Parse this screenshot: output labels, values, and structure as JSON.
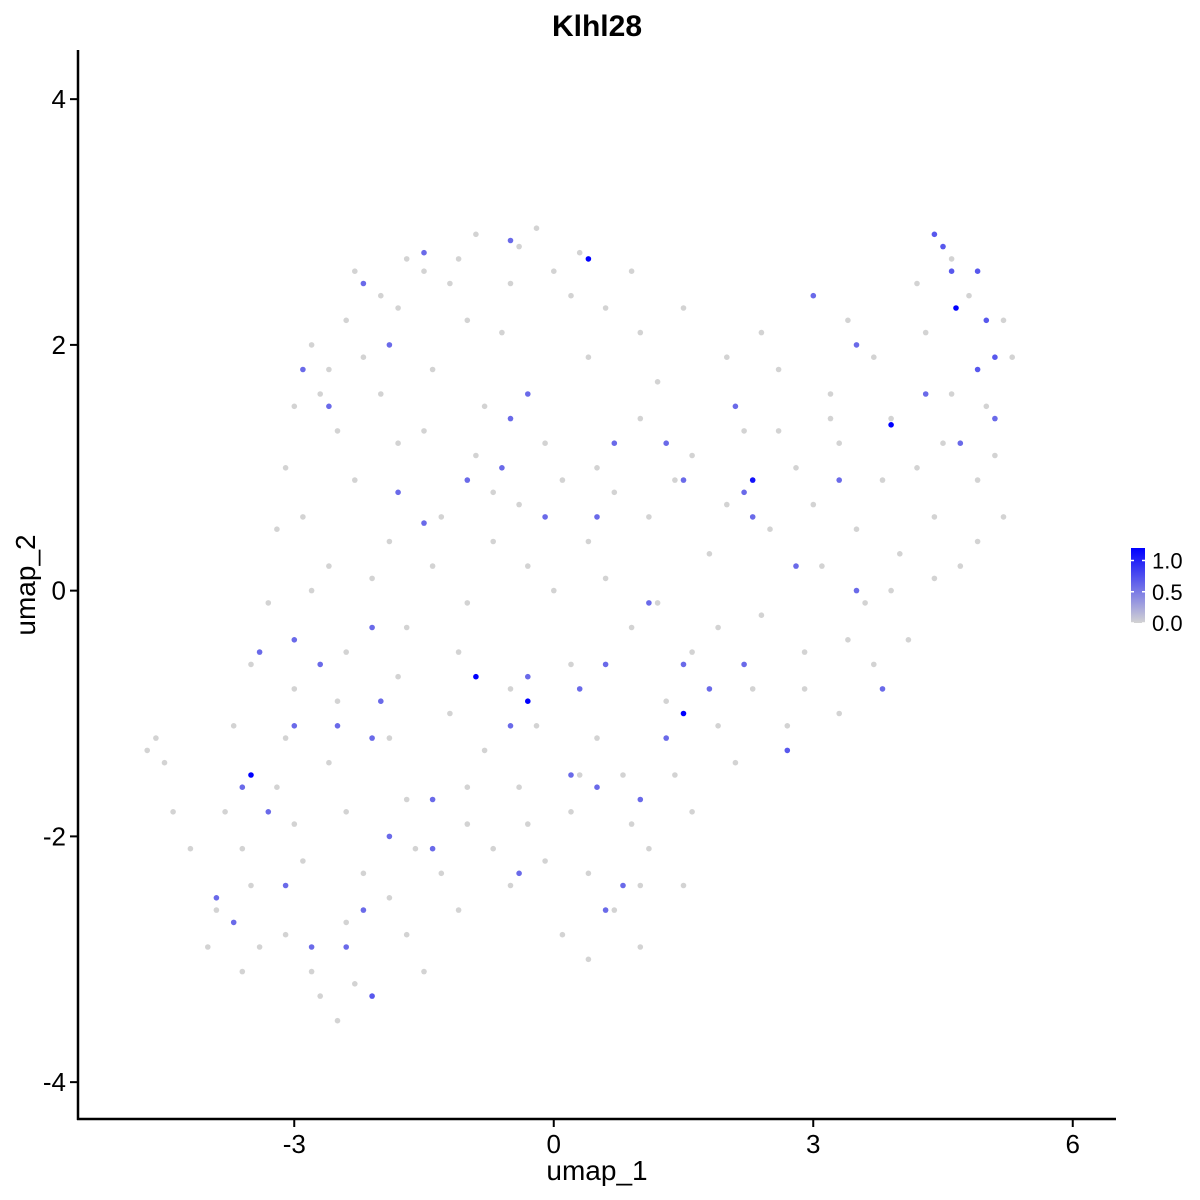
{
  "chart_data": {
    "type": "scatter",
    "title": "Klhl28",
    "xlabel": "umap_1",
    "ylabel": "umap_2",
    "xlim": [
      -5.5,
      6.5
    ],
    "ylim": [
      -4.3,
      4.4
    ],
    "xticks": [
      -3,
      0,
      3,
      6
    ],
    "yticks": [
      -4,
      -2,
      0,
      2,
      4
    ],
    "grid": false,
    "legend": {
      "position": "right",
      "type": "colorbar",
      "labels": [
        "1.0",
        "0.5",
        "0.0"
      ],
      "values": [
        1.0,
        0.5,
        0.0
      ],
      "range": [
        0,
        1.2
      ],
      "low_color": "#d3d3d3",
      "high_color": "#0000ff"
    },
    "point_color_zero": "#d3d3d3",
    "point_color_high": "#0000ff",
    "points": [
      [
        -0.4,
        2.8,
        0
      ],
      [
        -0.9,
        2.9,
        0
      ],
      [
        0.3,
        2.75,
        0
      ],
      [
        -1.5,
        2.6,
        0
      ],
      [
        -2.0,
        2.4,
        0
      ],
      [
        -2.4,
        2.2,
        0
      ],
      [
        -1.2,
        2.5,
        0
      ],
      [
        0.9,
        2.6,
        0
      ],
      [
        -0.2,
        2.95,
        0
      ],
      [
        -1.7,
        2.7,
        0
      ],
      [
        -2.8,
        2.0,
        0
      ],
      [
        -2.6,
        1.8,
        0
      ],
      [
        -3.0,
        1.5,
        0
      ],
      [
        -2.2,
        1.9,
        0
      ],
      [
        -1.0,
        2.2,
        0
      ],
      [
        0.2,
        2.4,
        0
      ],
      [
        0.6,
        2.3,
        0
      ],
      [
        -0.6,
        2.1,
        0
      ],
      [
        -1.4,
        1.8,
        0
      ],
      [
        -2.5,
        1.3,
        0
      ],
      [
        -3.1,
        1.0,
        0
      ],
      [
        -2.9,
        0.6,
        0
      ],
      [
        -2.3,
        0.9,
        0
      ],
      [
        -1.8,
        1.2,
        0
      ],
      [
        -0.8,
        1.5,
        0
      ],
      [
        0.4,
        1.9,
        0
      ],
      [
        1.2,
        1.7,
        0
      ],
      [
        2.0,
        1.9,
        0
      ],
      [
        2.6,
        1.8,
        0
      ],
      [
        3.2,
        1.6,
        0
      ],
      [
        3.7,
        1.9,
        0
      ],
      [
        4.3,
        2.1,
        0
      ],
      [
        4.8,
        2.4,
        0
      ],
      [
        5.2,
        2.2,
        0
      ],
      [
        4.6,
        2.7,
        0
      ],
      [
        4.2,
        2.5,
        0
      ],
      [
        3.9,
        1.4,
        0
      ],
      [
        4.5,
        1.2,
        0
      ],
      [
        5.0,
        1.5,
        0
      ],
      [
        5.3,
        1.9,
        0
      ],
      [
        4.9,
        0.9,
        0
      ],
      [
        4.4,
        0.6,
        0
      ],
      [
        3.8,
        0.9,
        0
      ],
      [
        3.3,
        1.2,
        0
      ],
      [
        2.8,
        1.0,
        0
      ],
      [
        2.2,
        1.3,
        0
      ],
      [
        1.6,
        1.1,
        0
      ],
      [
        1.0,
        1.4,
        0
      ],
      [
        0.5,
        1.0,
        0
      ],
      [
        -0.1,
        1.2,
        0
      ],
      [
        -0.7,
        0.8,
        0
      ],
      [
        -1.3,
        0.6,
        0
      ],
      [
        -1.9,
        0.4,
        0
      ],
      [
        -2.6,
        0.2,
        0
      ],
      [
        -3.3,
        -0.1,
        0
      ],
      [
        -3.5,
        -0.6,
        0
      ],
      [
        -3.0,
        -0.8,
        0
      ],
      [
        -2.4,
        -0.5,
        0
      ],
      [
        -1.7,
        -0.3,
        0
      ],
      [
        -1.0,
        -0.1,
        0
      ],
      [
        -0.3,
        0.2,
        0
      ],
      [
        0.4,
        0.4,
        0
      ],
      [
        1.1,
        0.6,
        0
      ],
      [
        1.8,
        0.3,
        0
      ],
      [
        2.5,
        0.5,
        0
      ],
      [
        3.1,
        0.2,
        0
      ],
      [
        3.6,
        -0.1,
        0
      ],
      [
        4.0,
        0.3,
        0
      ],
      [
        4.7,
        0.2,
        0
      ],
      [
        2.9,
        -0.5,
        0
      ],
      [
        2.3,
        -0.8,
        0
      ],
      [
        1.6,
        -0.5,
        0
      ],
      [
        0.9,
        -0.3,
        0
      ],
      [
        0.2,
        -0.6,
        0
      ],
      [
        -0.5,
        -0.8,
        0
      ],
      [
        -1.2,
        -1.0,
        0
      ],
      [
        -1.9,
        -1.2,
        0
      ],
      [
        -2.6,
        -1.4,
        0
      ],
      [
        -3.2,
        -1.6,
        0
      ],
      [
        -3.8,
        -1.8,
        0
      ],
      [
        -4.2,
        -2.1,
        0
      ],
      [
        -3.9,
        -2.6,
        0
      ],
      [
        -3.4,
        -2.9,
        0
      ],
      [
        -2.8,
        -3.1,
        0
      ],
      [
        -2.3,
        -3.2,
        0
      ],
      [
        -1.7,
        -2.8,
        0
      ],
      [
        -1.1,
        -2.6,
        0
      ],
      [
        -0.5,
        -2.4,
        0
      ],
      [
        0.1,
        -2.8,
        0
      ],
      [
        0.7,
        -2.6,
        0
      ],
      [
        1.1,
        -2.1,
        0
      ],
      [
        1.6,
        -1.8,
        0
      ],
      [
        2.1,
        -1.4,
        0
      ],
      [
        2.7,
        -1.1,
        0
      ],
      [
        3.3,
        -1.0,
        0
      ],
      [
        3.7,
        -0.6,
        0
      ],
      [
        4.1,
        -0.4,
        0
      ],
      [
        0.8,
        -1.5,
        0
      ],
      [
        0.2,
        -1.8,
        0
      ],
      [
        -0.4,
        -1.6,
        0
      ],
      [
        -1.0,
        -1.9,
        0
      ],
      [
        -1.6,
        -2.1,
        0
      ],
      [
        -2.2,
        -2.3,
        0
      ],
      [
        -2.9,
        -2.2,
        0
      ],
      [
        -3.5,
        -2.4,
        0
      ],
      [
        -4.6,
        -1.2,
        0
      ],
      [
        -4.7,
        -1.3,
        0
      ],
      [
        -4.5,
        -1.4,
        0
      ],
      [
        -4.4,
        -1.8,
        0
      ],
      [
        -2.7,
        -3.3,
        0
      ],
      [
        -2.5,
        -3.5,
        0
      ],
      [
        -1.5,
        -3.1,
        0
      ],
      [
        0.4,
        -3.0,
        0
      ],
      [
        1.0,
        -2.9,
        0
      ],
      [
        1.5,
        -2.4,
        0
      ],
      [
        -0.2,
        -1.1,
        0
      ],
      [
        -0.8,
        -1.3,
        0
      ],
      [
        0.5,
        -1.2,
        0
      ],
      [
        1.3,
        -0.9,
        0
      ],
      [
        1.9,
        -1.1,
        0
      ],
      [
        2.4,
        -0.2,
        0
      ],
      [
        3.0,
        0.7,
        0
      ],
      [
        3.5,
        0.5,
        0
      ],
      [
        4.2,
        1.0,
        0
      ],
      [
        5.1,
        1.1,
        0
      ],
      [
        5.2,
        0.6,
        0
      ],
      [
        4.6,
        1.6,
        0
      ],
      [
        3.4,
        2.2,
        0
      ],
      [
        2.4,
        2.1,
        0
      ],
      [
        1.5,
        2.3,
        0
      ],
      [
        1.0,
        2.1,
        0
      ],
      [
        0.0,
        2.6,
        0
      ],
      [
        -0.5,
        2.5,
        0
      ],
      [
        -1.1,
        2.7,
        0
      ],
      [
        -1.8,
        2.3,
        0
      ],
      [
        -2.3,
        2.6,
        0
      ],
      [
        -2.7,
        1.6,
        0
      ],
      [
        -2.0,
        1.6,
        0
      ],
      [
        -1.5,
        1.3,
        0
      ],
      [
        -0.9,
        1.1,
        0
      ],
      [
        -0.4,
        0.7,
        0
      ],
      [
        0.1,
        0.9,
        0
      ],
      [
        0.7,
        0.8,
        0
      ],
      [
        1.4,
        0.9,
        0
      ],
      [
        2.0,
        0.7,
        0
      ],
      [
        2.6,
        1.3,
        0
      ],
      [
        3.2,
        1.4,
        0
      ],
      [
        -3.2,
        0.5,
        0
      ],
      [
        -2.8,
        0.0,
        0
      ],
      [
        -2.1,
        0.1,
        0
      ],
      [
        -1.4,
        0.2,
        0
      ],
      [
        -0.7,
        0.4,
        0
      ],
      [
        0.0,
        0.0,
        0
      ],
      [
        0.6,
        0.1,
        0
      ],
      [
        1.2,
        -0.1,
        0
      ],
      [
        1.9,
        -0.3,
        0
      ],
      [
        -3.7,
        -1.1,
        0
      ],
      [
        -3.1,
        -1.2,
        0
      ],
      [
        -2.5,
        -0.9,
        0
      ],
      [
        -1.8,
        -0.7,
        0
      ],
      [
        -1.1,
        -0.5,
        0
      ],
      [
        -4.0,
        -2.9,
        0
      ],
      [
        -3.6,
        -3.1,
        0
      ],
      [
        -3.1,
        -2.8,
        0
      ],
      [
        -2.4,
        -2.7,
        0
      ],
      [
        -1.9,
        -2.5,
        0
      ],
      [
        -1.3,
        -2.3,
        0
      ],
      [
        -0.7,
        -2.1,
        0
      ],
      [
        -0.1,
        -2.2,
        0
      ],
      [
        0.4,
        -2.3,
        0
      ],
      [
        1.0,
        -2.4,
        0
      ],
      [
        1.4,
        -1.5,
        0
      ],
      [
        0.9,
        -1.9,
        0
      ],
      [
        0.3,
        -1.5,
        0
      ],
      [
        -0.3,
        -1.9,
        0
      ],
      [
        -1.0,
        -1.6,
        0
      ],
      [
        -1.7,
        -1.7,
        0
      ],
      [
        -2.4,
        -1.8,
        0
      ],
      [
        -3.0,
        -1.9,
        0
      ],
      [
        -3.6,
        -2.1,
        0
      ],
      [
        2.9,
        -0.8,
        0
      ],
      [
        3.4,
        -0.4,
        0
      ],
      [
        3.9,
        0.0,
        0
      ],
      [
        4.4,
        0.1,
        0
      ],
      [
        4.9,
        0.4,
        0
      ],
      [
        -0.5,
        2.85,
        0.6
      ],
      [
        -1.5,
        2.75,
        0.6
      ],
      [
        -2.2,
        2.5,
        0.6
      ],
      [
        -1.9,
        2.0,
        0.6
      ],
      [
        -2.9,
        1.8,
        0.6
      ],
      [
        -2.6,
        1.5,
        0.6
      ],
      [
        -1.8,
        0.8,
        0.6
      ],
      [
        -1.5,
        0.55,
        0.6
      ],
      [
        -0.5,
        1.4,
        0.6
      ],
      [
        -0.3,
        1.6,
        0.6
      ],
      [
        -0.6,
        1.0,
        0.6
      ],
      [
        -1.0,
        0.9,
        0.6
      ],
      [
        0.7,
        1.2,
        0.6
      ],
      [
        1.3,
        1.2,
        0.6
      ],
      [
        2.2,
        0.8,
        0.6
      ],
      [
        2.3,
        0.6,
        0.6
      ],
      [
        2.8,
        0.2,
        0.6
      ],
      [
        3.5,
        0.0,
        0.6
      ],
      [
        3.5,
        2.0,
        0.6
      ],
      [
        3.0,
        2.4,
        0.6
      ],
      [
        4.4,
        2.9,
        0.7
      ],
      [
        4.5,
        2.8,
        0.7
      ],
      [
        4.6,
        2.6,
        0.7
      ],
      [
        4.9,
        2.6,
        0.7
      ],
      [
        5.0,
        2.2,
        0.7
      ],
      [
        5.1,
        1.9,
        0.7
      ],
      [
        4.9,
        1.8,
        0.7
      ],
      [
        4.7,
        1.2,
        0.6
      ],
      [
        4.3,
        1.6,
        0.6
      ],
      [
        5.1,
        1.4,
        0.6
      ],
      [
        3.8,
        -0.8,
        0.6
      ],
      [
        3.3,
        0.9,
        0.6
      ],
      [
        -3.0,
        -0.4,
        0.6
      ],
      [
        -2.7,
        -0.6,
        0.6
      ],
      [
        -2.1,
        -0.3,
        0.6
      ],
      [
        -2.0,
        -0.9,
        0.6
      ],
      [
        -2.1,
        -1.2,
        0.6
      ],
      [
        -2.5,
        -1.1,
        0.6
      ],
      [
        -3.0,
        -1.1,
        0.6
      ],
      [
        -3.4,
        -0.5,
        0.6
      ],
      [
        -3.6,
        -1.6,
        0.6
      ],
      [
        -3.3,
        -1.8,
        0.6
      ],
      [
        -3.9,
        -2.5,
        0.6
      ],
      [
        -3.7,
        -2.7,
        0.6
      ],
      [
        -3.1,
        -2.4,
        0.6
      ],
      [
        -2.8,
        -2.9,
        0.6
      ],
      [
        -2.4,
        -2.9,
        0.6
      ],
      [
        -2.1,
        -3.3,
        0.7
      ],
      [
        -2.2,
        -2.6,
        0.6
      ],
      [
        -1.9,
        -2.0,
        0.6
      ],
      [
        -1.4,
        -2.1,
        0.6
      ],
      [
        -1.4,
        -1.7,
        0.6
      ],
      [
        -0.4,
        -2.3,
        0.6
      ],
      [
        0.2,
        -1.5,
        0.6
      ],
      [
        0.5,
        -1.6,
        0.6
      ],
      [
        0.8,
        -2.4,
        0.6
      ],
      [
        1.0,
        -1.7,
        0.6
      ],
      [
        0.6,
        -2.6,
        0.6
      ],
      [
        1.3,
        -1.2,
        0.6
      ],
      [
        1.8,
        -0.8,
        0.6
      ],
      [
        2.2,
        -0.6,
        0.6
      ],
      [
        2.7,
        -1.3,
        0.7
      ],
      [
        1.5,
        -0.6,
        0.6
      ],
      [
        0.6,
        -0.6,
        0.6
      ],
      [
        0.3,
        -0.8,
        0.6
      ],
      [
        -0.3,
        -0.7,
        0.6
      ],
      [
        -0.5,
        -1.1,
        0.6
      ],
      [
        1.1,
        -0.1,
        0.6
      ],
      [
        0.5,
        0.6,
        0.6
      ],
      [
        -0.1,
        0.6,
        0.6
      ],
      [
        1.5,
        0.9,
        0.6
      ],
      [
        2.1,
        1.5,
        0.6
      ],
      [
        0.4,
        2.7,
        1.2
      ],
      [
        -0.9,
        -0.7,
        1.2
      ],
      [
        -0.3,
        -0.9,
        1.2
      ],
      [
        1.5,
        -1.0,
        1.2
      ],
      [
        -3.5,
        -1.5,
        1.2
      ],
      [
        2.3,
        0.9,
        1.1
      ],
      [
        3.9,
        1.35,
        1.2
      ],
      [
        4.65,
        2.3,
        1.2
      ]
    ]
  }
}
